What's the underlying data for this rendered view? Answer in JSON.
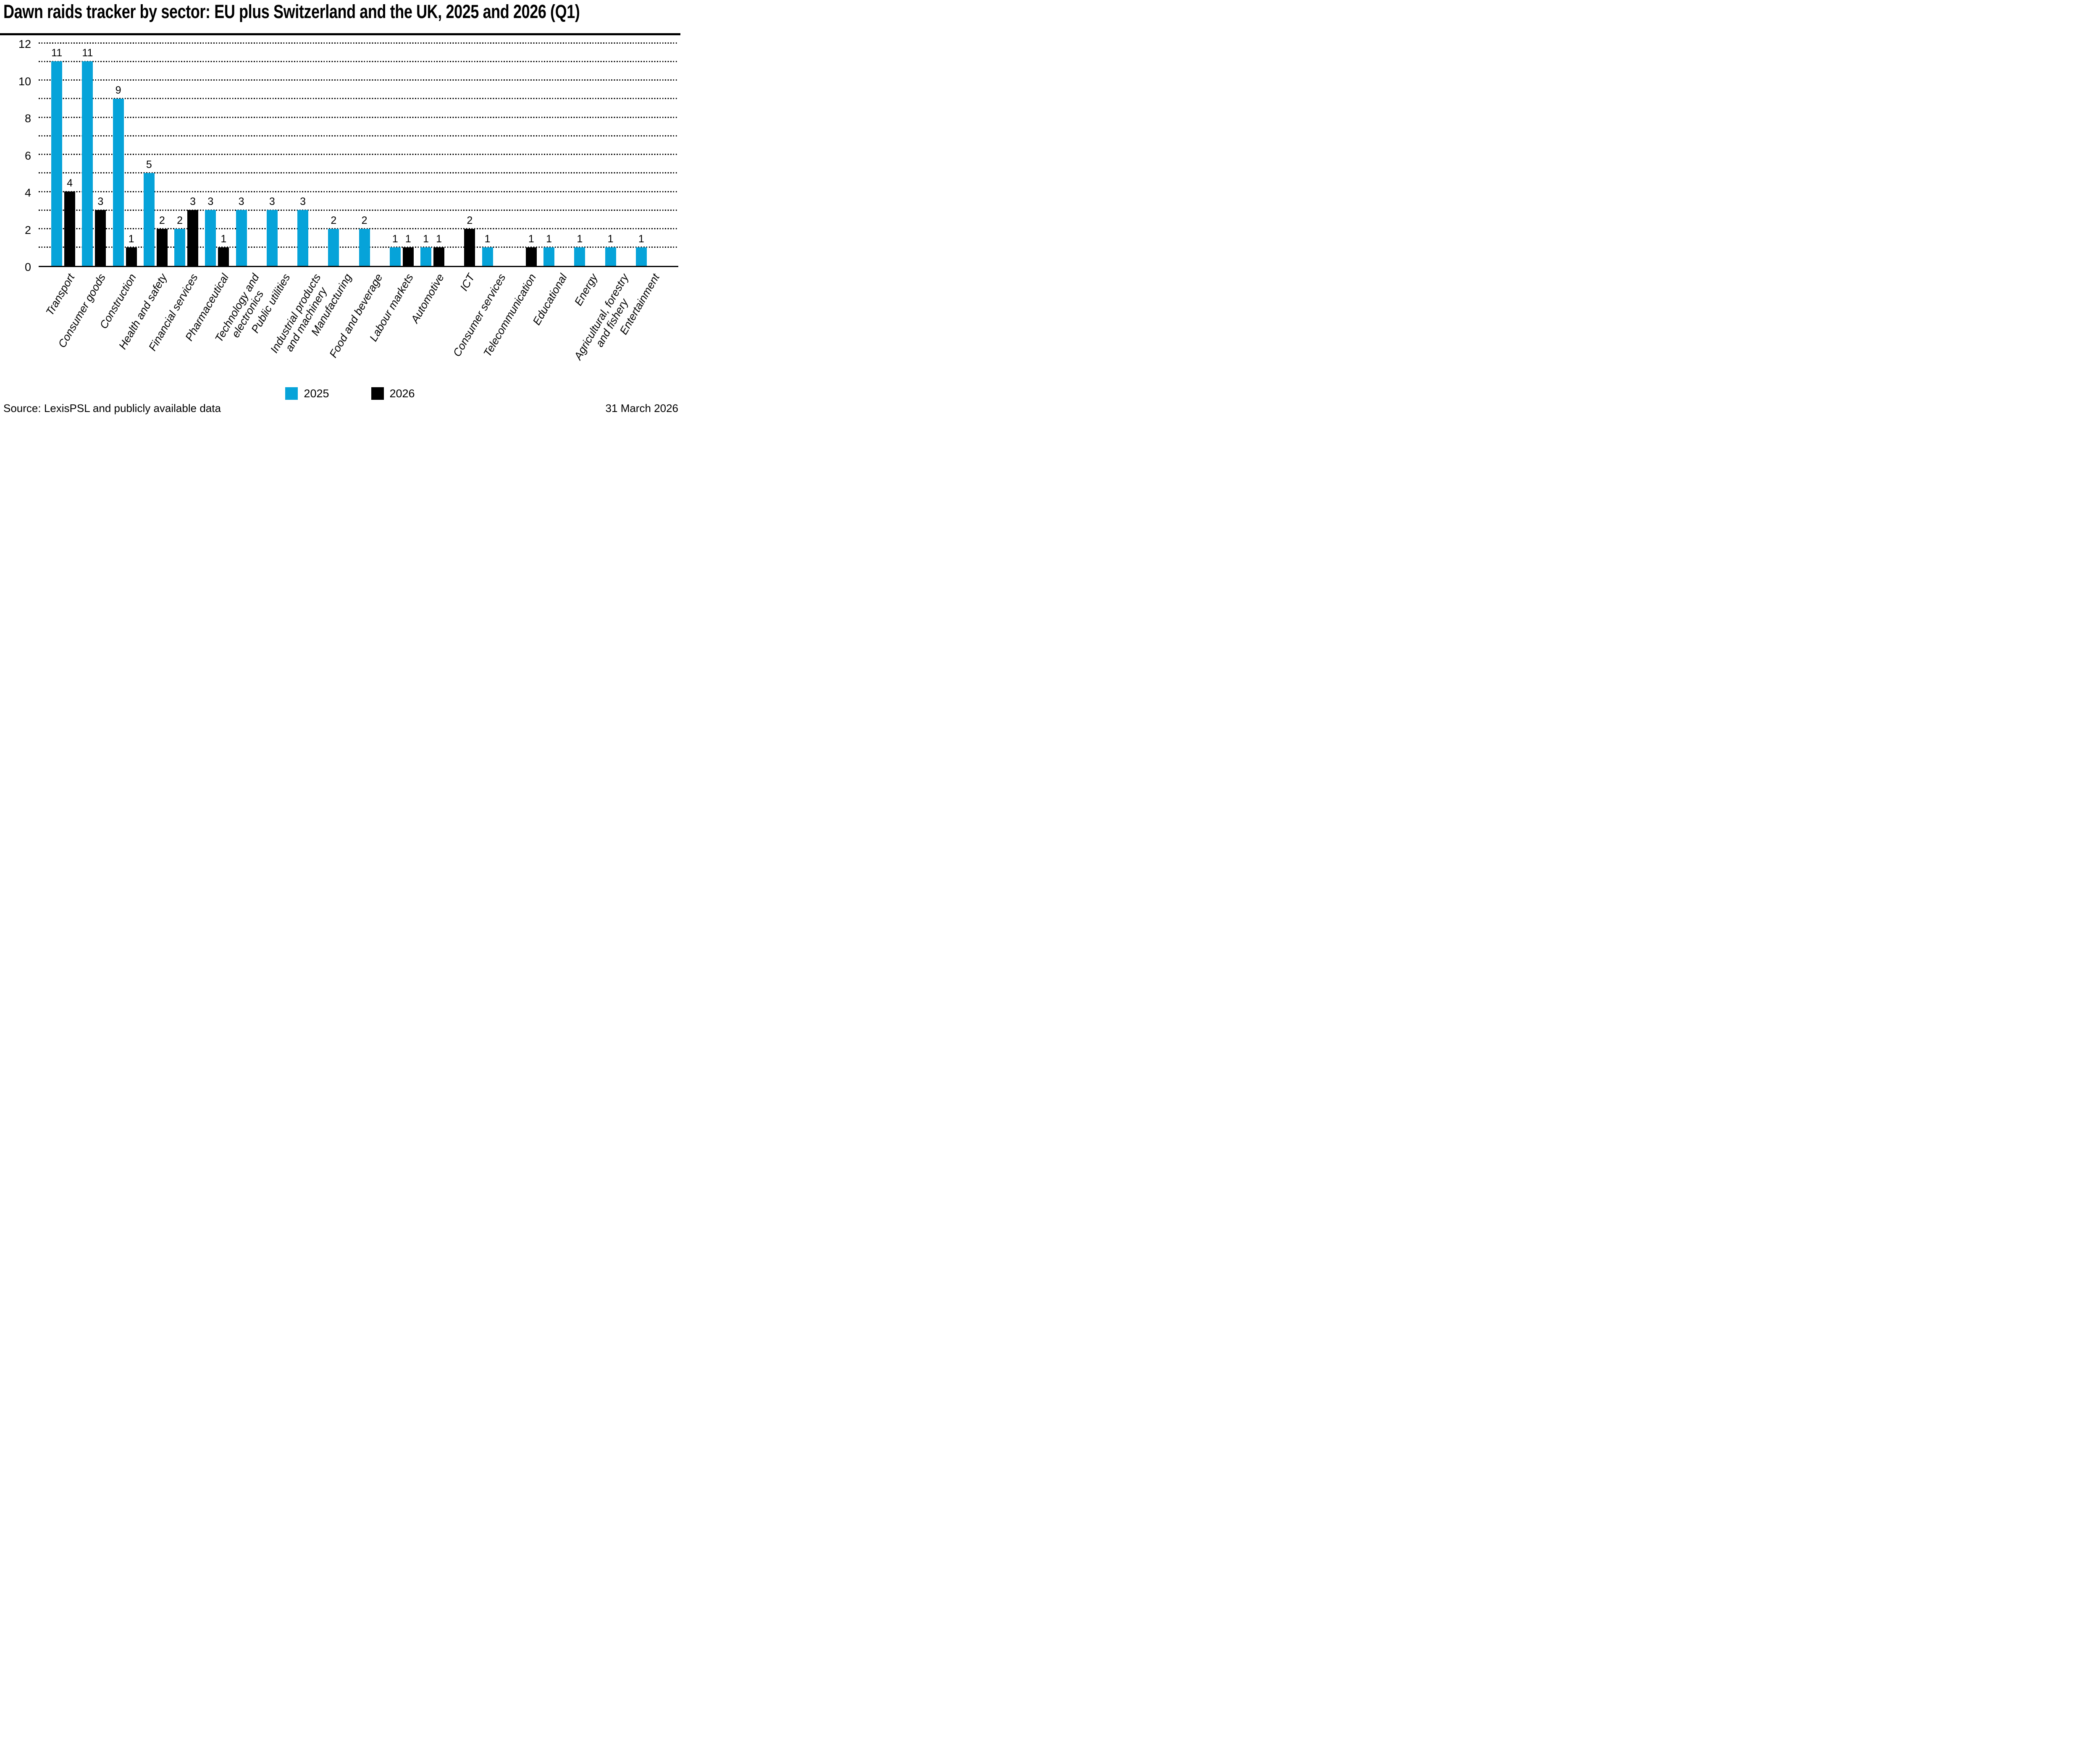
{
  "page": {
    "title": "Dawn raids tracker by sector: EU plus Switzerland and the UK, 2025 and 2026 (Q1)"
  },
  "footer": {
    "source": "Source: LexisPSL and publicly available data",
    "date": "31 March 2026"
  },
  "chart_data": {
    "type": "bar",
    "title": "Dawn raids tracker by sector: EU plus Switzerland and the UK, 2025 and 2026 (Q1)",
    "categories": [
      "Transport",
      "Consumer goods",
      "Construction",
      "Health and safety",
      "Financial services",
      "Pharmaceutical",
      "Technology and electronics",
      "Public utilities",
      "Industrial products and machinery",
      "Manufacturing",
      "Food and beverage",
      "Labour markets",
      "Automotive",
      "ICT",
      "Consumer services",
      "Telecommunication",
      "Educational",
      "Energy",
      "Agricultural, forestry and fishery",
      "Entertainment"
    ],
    "category_label_lines": [
      [
        "Transport"
      ],
      [
        "Consumer goods"
      ],
      [
        "Construction"
      ],
      [
        "Health and safety"
      ],
      [
        "Financial services"
      ],
      [
        "Pharmaceutical"
      ],
      [
        "Technology and",
        "electronics"
      ],
      [
        "Public utilities"
      ],
      [
        "Industrial products",
        "and machinery"
      ],
      [
        "Manufacturing"
      ],
      [
        "Food and beverage"
      ],
      [
        "Labour markets"
      ],
      [
        "Automotive"
      ],
      [
        "ICT"
      ],
      [
        "Consumer services"
      ],
      [
        "Telecommunication"
      ],
      [
        "Educational"
      ],
      [
        "Energy"
      ],
      [
        "Agricultural, forestry",
        "and fishery"
      ],
      [
        "Entertainment"
      ]
    ],
    "series": [
      {
        "name": "2025",
        "color": "#06a3d9",
        "values": [
          11,
          11,
          9,
          5,
          2,
          3,
          3,
          3,
          3,
          2,
          2,
          1,
          1,
          null,
          1,
          null,
          1,
          1,
          1,
          1
        ]
      },
      {
        "name": "2026",
        "color": "#000000",
        "values": [
          4,
          3,
          1,
          2,
          3,
          1,
          null,
          null,
          null,
          null,
          null,
          1,
          1,
          2,
          null,
          1,
          null,
          null,
          null,
          null
        ]
      }
    ],
    "xlabel": "",
    "ylabel": "",
    "ylim": [
      0,
      12
    ],
    "yticks": [
      0,
      2,
      4,
      6,
      8,
      10,
      12
    ],
    "grid": {
      "horizontal": "dotted",
      "interval": 1,
      "color": "#000000"
    },
    "bar_value_labels": true,
    "legend_position": "bottom",
    "axis_line_color": "#000000"
  }
}
